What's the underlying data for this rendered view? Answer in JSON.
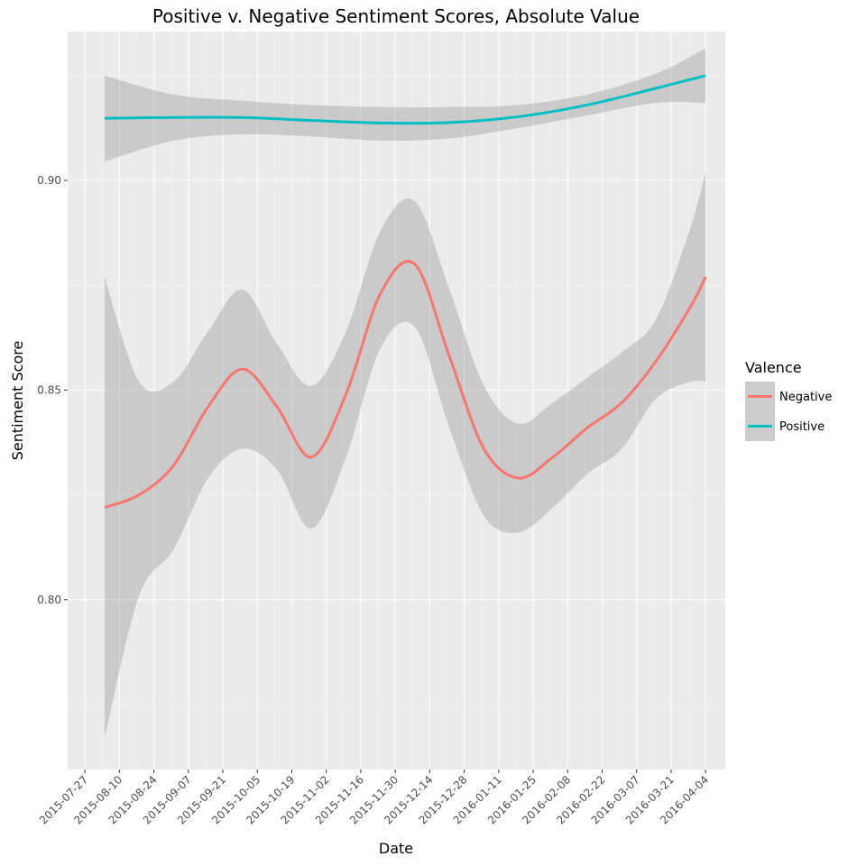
{
  "chart_data": {
    "type": "line",
    "title": "Positive v. Negative Sentiment Scores, Absolute Value",
    "xlabel": "Date",
    "ylabel": "Sentiment Score",
    "x_ticks": [
      "2015-07-27",
      "2015-08-10",
      "2015-08-24",
      "2015-09-07",
      "2015-09-21",
      "2015-10-05",
      "2015-10-19",
      "2015-11-02",
      "2015-11-16",
      "2015-11-30",
      "2015-12-14",
      "2015-12-28",
      "2016-01-11",
      "2016-01-25",
      "2016-02-08",
      "2016-02-22",
      "2016-03-07",
      "2016-03-21",
      "2016-04-04"
    ],
    "y_ticks": [
      "0.80",
      "0.85",
      "0.90"
    ],
    "ylim": [
      0.7595,
      0.9355
    ],
    "xlim": [
      "2015-07-20",
      "2016-04-12"
    ],
    "grid": true,
    "legend": {
      "title": "Valence",
      "placement": "right"
    },
    "series": [
      {
        "name": "Negative",
        "color": "#f8766d",
        "x": [
          "2015-08-04",
          "2015-08-18",
          "2015-09-01",
          "2015-09-15",
          "2015-09-29",
          "2015-10-13",
          "2015-10-27",
          "2015-11-10",
          "2015-11-24",
          "2015-12-08",
          "2015-12-22",
          "2016-01-05",
          "2016-01-19",
          "2016-02-02",
          "2016-02-16",
          "2016-03-01",
          "2016-03-15",
          "2016-03-29",
          "2016-04-04"
        ],
        "y": [
          0.822,
          0.825,
          0.832,
          0.846,
          0.855,
          0.846,
          0.834,
          0.849,
          0.873,
          0.88,
          0.858,
          0.836,
          0.829,
          0.834,
          0.841,
          0.847,
          0.857,
          0.87,
          0.877
        ],
        "lower": [
          0.767,
          0.801,
          0.812,
          0.829,
          0.836,
          0.831,
          0.817,
          0.834,
          0.86,
          0.865,
          0.841,
          0.82,
          0.816,
          0.822,
          0.83,
          0.836,
          0.848,
          0.852,
          0.852
        ],
        "upper": [
          0.877,
          0.852,
          0.852,
          0.864,
          0.874,
          0.861,
          0.851,
          0.864,
          0.888,
          0.895,
          0.874,
          0.851,
          0.842,
          0.847,
          0.853,
          0.859,
          0.867,
          0.889,
          0.902
        ]
      },
      {
        "name": "Positive",
        "color": "#00bfc4",
        "x": [
          "2015-08-04",
          "2015-09-01",
          "2015-09-29",
          "2015-10-27",
          "2015-11-24",
          "2015-12-22",
          "2016-01-19",
          "2016-02-16",
          "2016-03-15",
          "2016-04-04"
        ],
        "y": [
          0.9148,
          0.915,
          0.915,
          0.9143,
          0.9137,
          0.9138,
          0.9152,
          0.918,
          0.922,
          0.925
        ],
        "lower": [
          0.9045,
          0.9095,
          0.911,
          0.9105,
          0.9095,
          0.91,
          0.9125,
          0.9155,
          0.9185,
          0.9185
        ],
        "upper": [
          0.925,
          0.9205,
          0.919,
          0.918,
          0.9175,
          0.9175,
          0.918,
          0.9205,
          0.9255,
          0.9315
        ]
      }
    ]
  }
}
